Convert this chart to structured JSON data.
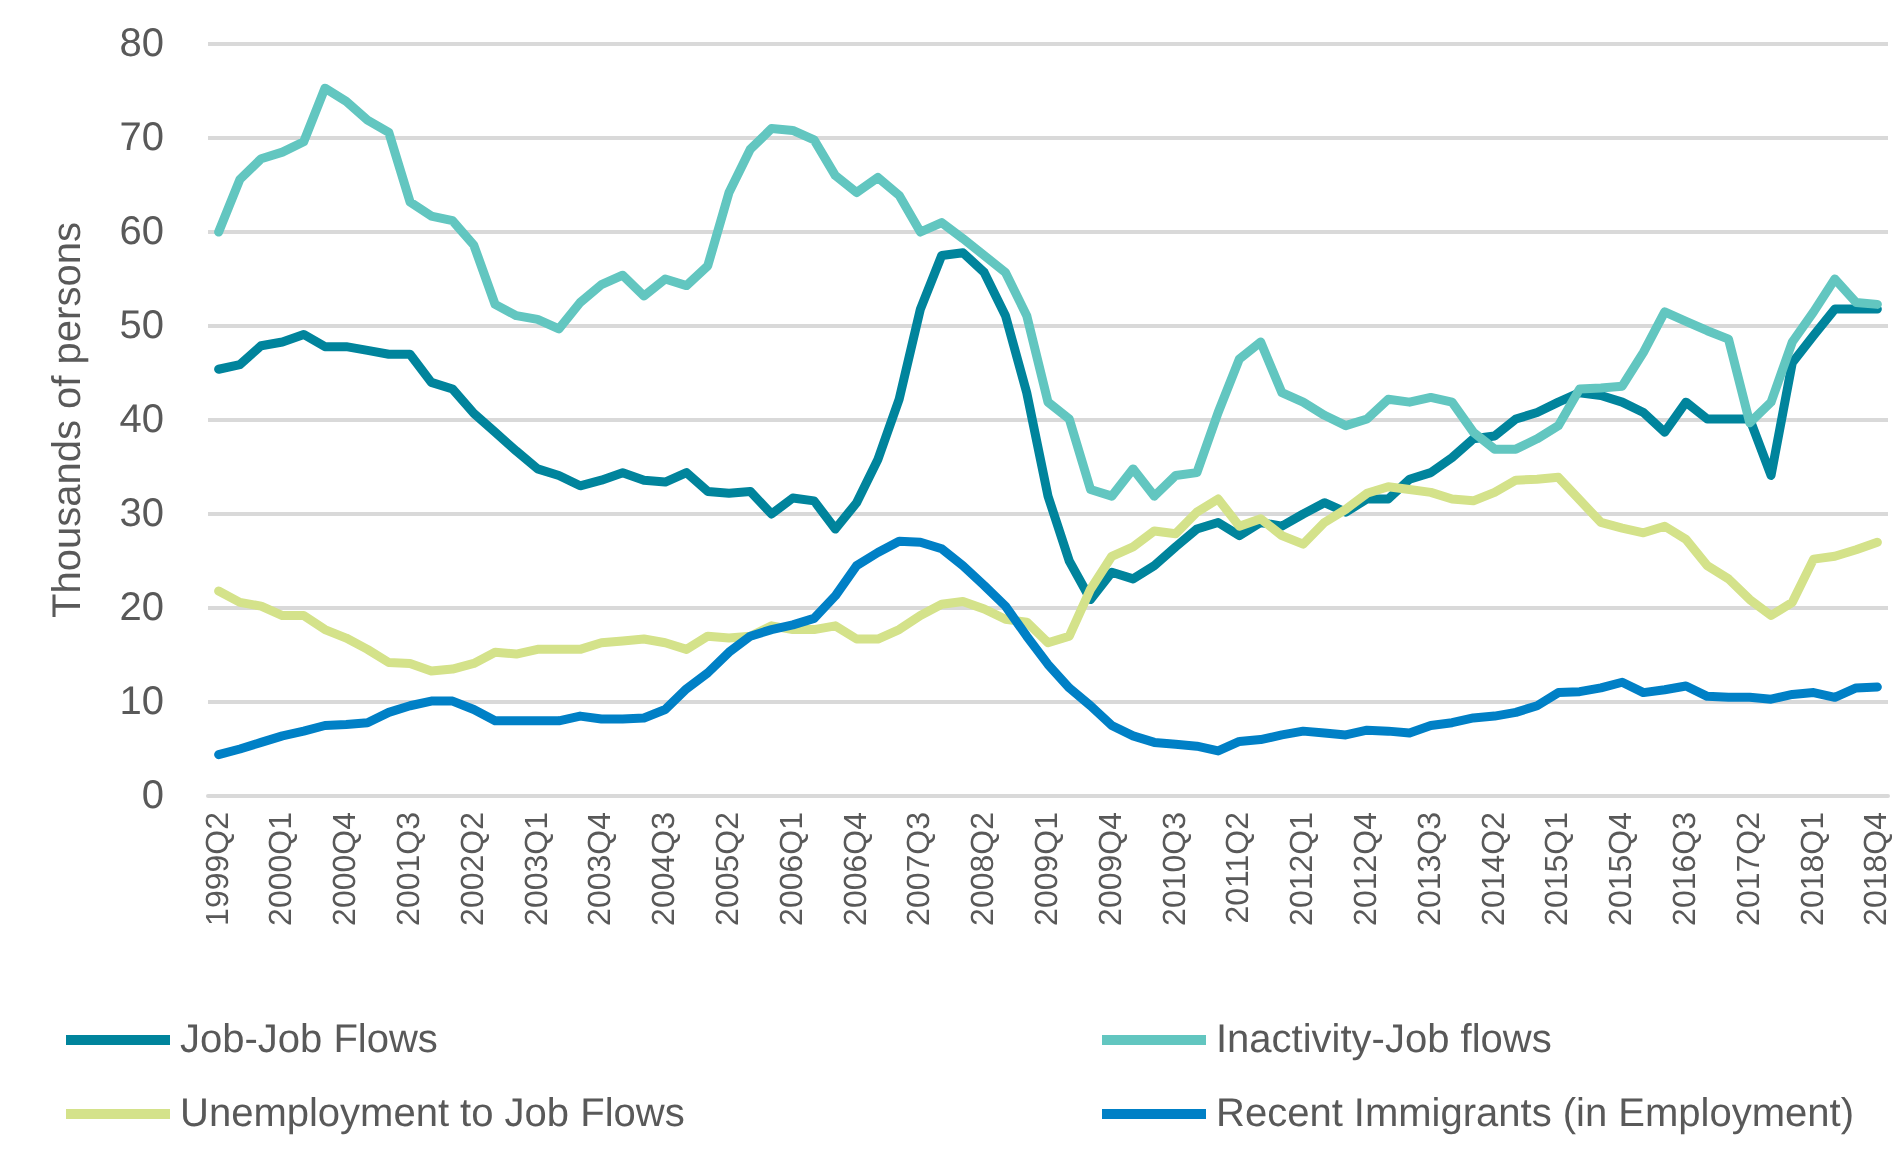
{
  "chart_data": {
    "type": "line",
    "ylabel": "Thousands of persons",
    "categories": [
      "1999Q2",
      null,
      null,
      "2000Q1",
      null,
      null,
      "2000Q4",
      null,
      null,
      "2001Q3",
      null,
      null,
      "2002Q2",
      null,
      null,
      "2003Q1",
      null,
      null,
      "2003Q4",
      null,
      null,
      "2004Q3",
      null,
      null,
      "2005Q2",
      null,
      null,
      "2006Q1",
      null,
      null,
      "2006Q4",
      null,
      null,
      "2007Q3",
      null,
      null,
      "2008Q2",
      null,
      null,
      "2009Q1",
      null,
      null,
      "2009Q4",
      null,
      null,
      "2010Q3",
      null,
      null,
      "2011Q2",
      null,
      null,
      "2012Q1",
      null,
      null,
      "2012Q4",
      null,
      null,
      "2013Q3",
      null,
      null,
      "2014Q2",
      null,
      null,
      "2015Q1",
      null,
      null,
      "2015Q4",
      null,
      null,
      "2016Q3",
      null,
      null,
      "2017Q2",
      null,
      null,
      "2018Q1",
      null,
      null,
      "2018Q4"
    ],
    "series": [
      {
        "name": "Job-Job Flows",
        "color": "#00849c",
        "values": [
          45.4,
          45.9,
          47.9,
          48.3,
          49.1,
          47.8,
          47.8,
          47.4,
          47,
          47,
          44,
          43.3,
          40.7,
          38.7,
          36.7,
          34.8,
          34.1,
          33,
          33.6,
          34.4,
          33.6,
          33.4,
          34.4,
          32.4,
          32.2,
          32.4,
          30,
          31.7,
          31.4,
          28.4,
          31.2,
          35.8,
          42.2,
          51.8,
          57.5,
          57.8,
          55.7,
          51.1,
          42.9,
          31.9,
          25,
          20.9,
          23.8,
          23.1,
          24.5,
          26.5,
          28.4,
          29.1,
          27.7,
          29.1,
          28.7,
          30,
          31.2,
          30.2,
          31.6,
          31.6,
          33.7,
          34.4,
          36,
          38,
          38.3,
          40.1,
          40.8,
          41.9,
          42.9,
          42.6,
          41.9,
          40.8,
          38.7,
          41.9,
          40.1,
          40.1,
          40.1,
          34.1,
          46.1,
          49,
          51.8,
          51.8,
          51.8
        ]
      },
      {
        "name": "Inactivity-Job flows",
        "color": "#62c6c0",
        "values": [
          60,
          65.6,
          67.8,
          68.5,
          69.6,
          75.3,
          73.9,
          71.9,
          70.6,
          63.2,
          61.7,
          61.2,
          58.6,
          52.3,
          51.1,
          50.7,
          49.7,
          52.5,
          54.4,
          55.4,
          53.2,
          55,
          54.3,
          56.4,
          64.2,
          68.8,
          71,
          70.8,
          69.8,
          66,
          64.2,
          65.8,
          63.9,
          60,
          61,
          59.3,
          57.5,
          55.7,
          51.1,
          41.9,
          40.1,
          32.6,
          31.9,
          34.8,
          31.9,
          34.1,
          34.4,
          40.8,
          46.5,
          48.3,
          42.9,
          41.9,
          40.5,
          39.4,
          40.1,
          42.2,
          41.9,
          42.4,
          41.9,
          38.7,
          36.9,
          36.9,
          38,
          39.4,
          43.3,
          43.4,
          43.6,
          47.2,
          51.5,
          50.5,
          49.5,
          48.6,
          39.7,
          41.9,
          48.3,
          51.5,
          55,
          52.5,
          52.3
        ]
      },
      {
        "name": "Unemployment to Job Flows",
        "color": "#d4e28a",
        "values": [
          21.8,
          20.6,
          20.2,
          19.2,
          19.2,
          17.7,
          16.8,
          15.6,
          14.2,
          14.1,
          13.3,
          13.5,
          14.1,
          15.3,
          15.1,
          15.6,
          15.6,
          15.6,
          16.3,
          16.5,
          16.7,
          16.3,
          15.6,
          17,
          16.8,
          17,
          18.1,
          17.7,
          17.7,
          18.1,
          16.7,
          16.7,
          17.7,
          19.2,
          20.4,
          20.7,
          19.9,
          18.8,
          18.5,
          16.3,
          17,
          22,
          25.5,
          26.5,
          28.2,
          27.9,
          30.2,
          31.6,
          28.7,
          29.5,
          27.7,
          26.8,
          29.1,
          30.5,
          32.2,
          32.9,
          32.6,
          32.3,
          31.6,
          31.4,
          32.3,
          33.6,
          33.7,
          33.9,
          31.5,
          29.1,
          28.5,
          28,
          28.7,
          27.3,
          24.5,
          23.1,
          20.9,
          19.2,
          20.6,
          25.2,
          25.5,
          26.2,
          27
        ]
      },
      {
        "name": "Recent Immigrants (in Employment)",
        "color": "#0080c6",
        "values": [
          4.4,
          5,
          5.7,
          6.4,
          6.9,
          7.5,
          7.6,
          7.8,
          8.9,
          9.6,
          10.1,
          10.1,
          9.2,
          8,
          8,
          8,
          8,
          8.5,
          8.2,
          8.2,
          8.3,
          9.2,
          11.4,
          13.1,
          15.3,
          17,
          17.7,
          18.2,
          18.9,
          21.3,
          24.5,
          25.9,
          27.1,
          27,
          26.3,
          24.5,
          22.4,
          20.2,
          17,
          14,
          11.5,
          9.6,
          7.5,
          6.4,
          5.7,
          5.5,
          5.3,
          4.8,
          5.8,
          6,
          6.5,
          6.9,
          6.7,
          6.5,
          7,
          6.9,
          6.7,
          7.5,
          7.8,
          8.3,
          8.5,
          8.9,
          9.6,
          11,
          11.1,
          11.5,
          12.1,
          11,
          11.3,
          11.7,
          10.6,
          10.5,
          10.5,
          10.3,
          10.8,
          11,
          10.5,
          11.5,
          11.6
        ]
      }
    ],
    "ylim": [
      0,
      80
    ],
    "yticks": [
      0,
      10,
      20,
      30,
      40,
      50,
      60,
      70,
      80
    ],
    "grid": "y",
    "legend": "bottom",
    "marker": "none",
    "line_style": "solid"
  }
}
